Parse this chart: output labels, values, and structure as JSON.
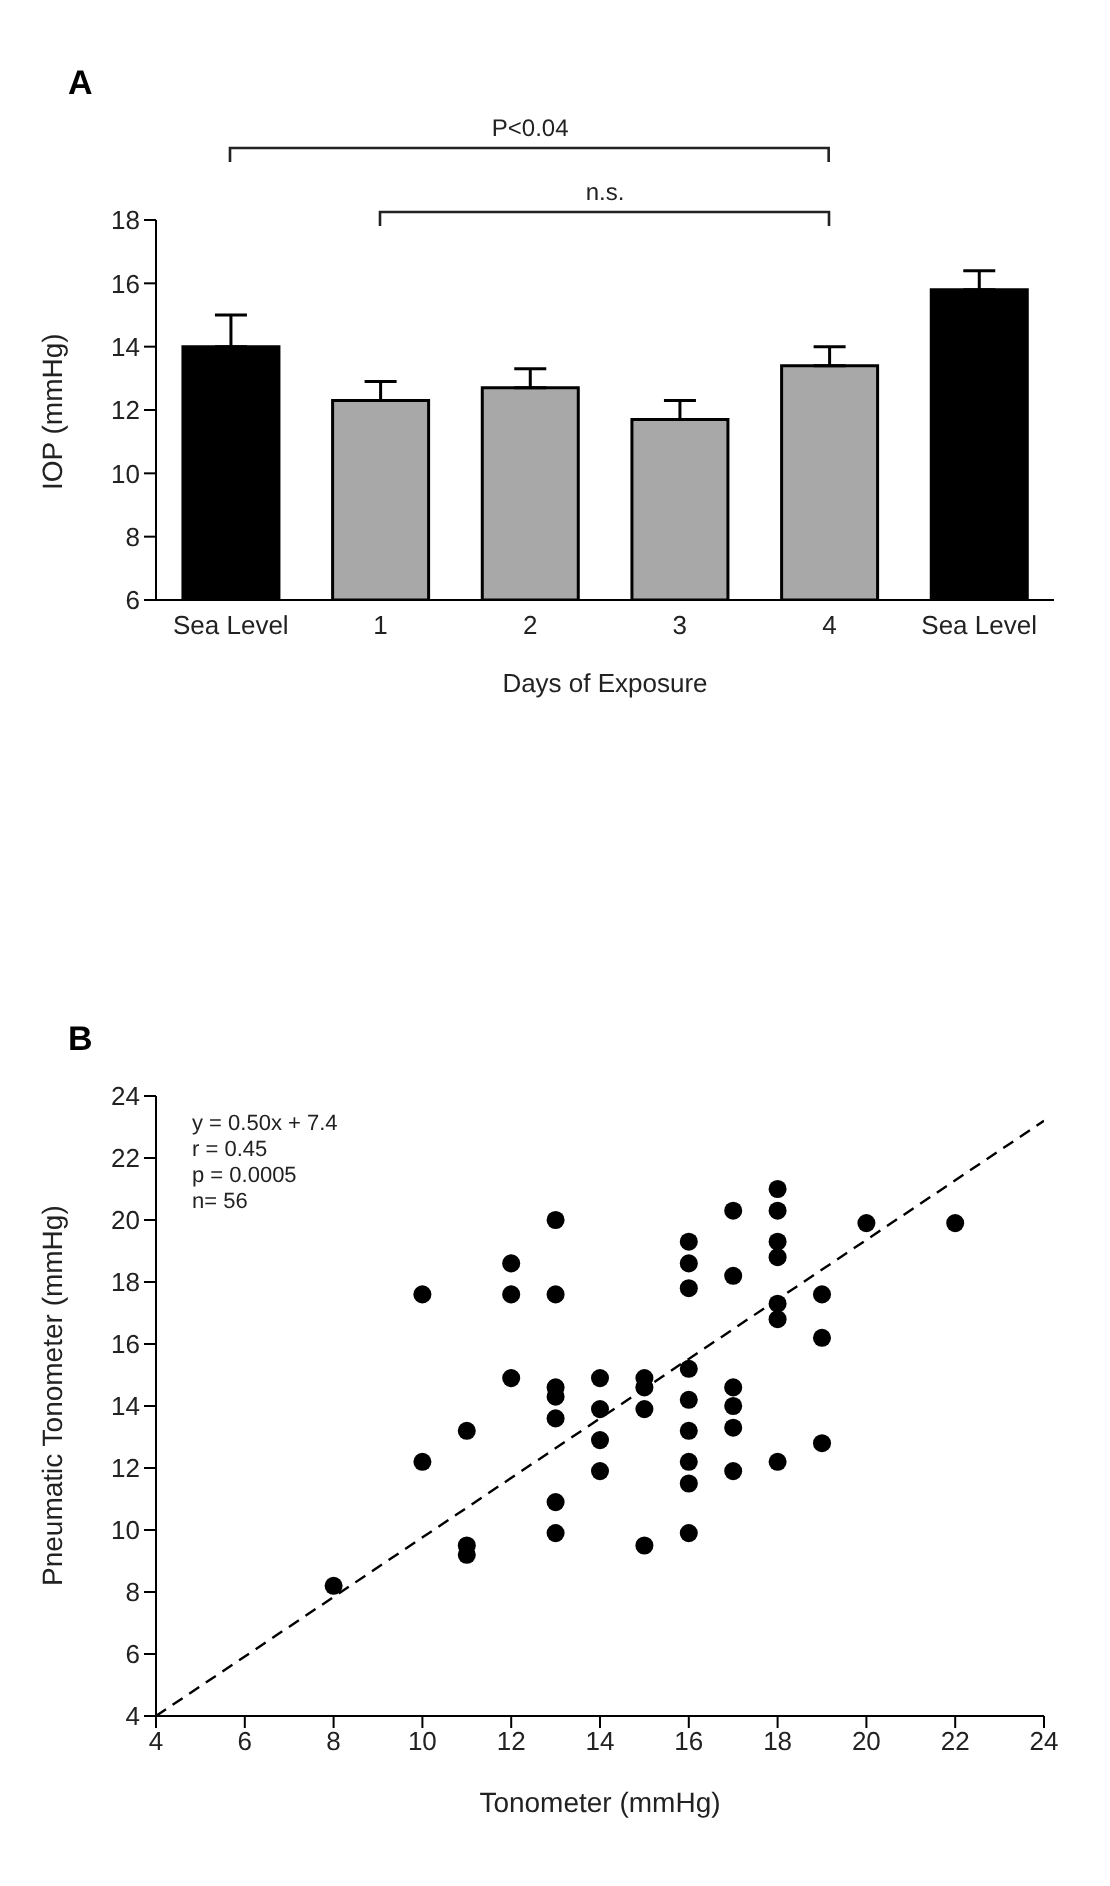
{
  "chart_data": [
    {
      "type": "bar",
      "title": "A",
      "xlabel": "Days of Exposure",
      "ylabel": "IOP (mmHg)",
      "categories": [
        "Sea Level",
        "1",
        "2",
        "3",
        "4",
        "Sea Level"
      ],
      "values": [
        14.0,
        12.3,
        12.7,
        11.7,
        13.4,
        15.8
      ],
      "colors": [
        "#000000",
        "#a8a8a8",
        "#a8a8a8",
        "#a8a8a8",
        "#a8a8a8",
        "#000000"
      ],
      "errors": [
        [
          14.0,
          15.0
        ],
        [
          12.3,
          12.9
        ],
        [
          12.7,
          13.3
        ],
        [
          11.7,
          12.3
        ],
        [
          13.4,
          14.0
        ],
        [
          15.8,
          16.4
        ]
      ],
      "ylim": [
        6,
        18
      ],
      "yticks": [
        6,
        8,
        10,
        12,
        14,
        16,
        18
      ],
      "annotations": [
        "P<0.04",
        "n.s."
      ]
    },
    {
      "type": "scatter",
      "title": "B",
      "xlabel": "Tonometer (mmHg)",
      "ylabel": "Pneumatic Tonometer (mmHg)",
      "xlim": [
        4,
        24
      ],
      "xticks": [
        4,
        6,
        8,
        10,
        12,
        14,
        16,
        18,
        20,
        22,
        24
      ],
      "ylim": [
        4,
        24
      ],
      "yticks": [
        4,
        6,
        8,
        10,
        12,
        14,
        16,
        18,
        20,
        22,
        24
      ],
      "series": [
        {
          "type": "scatter",
          "marker": "circle",
          "color": "#000000",
          "x": [
            8,
            10,
            10,
            11,
            11,
            11,
            12,
            12,
            12,
            13,
            13,
            13,
            13,
            13,
            13,
            13,
            14,
            14,
            14,
            14,
            15,
            15,
            15,
            15,
            16,
            16,
            16,
            16,
            16,
            16,
            16,
            16,
            16,
            17,
            17,
            17,
            17,
            17,
            17,
            18,
            18,
            18,
            18,
            18,
            18,
            18,
            19,
            19,
            19,
            20,
            22
          ],
          "values": [
            8.2,
            17.6,
            12.2,
            13.2,
            9.5,
            9.2,
            18.6,
            17.6,
            14.9,
            20.0,
            17.6,
            14.6,
            14.3,
            13.6,
            10.9,
            9.9,
            14.9,
            13.9,
            12.9,
            11.9,
            14.9,
            14.6,
            13.9,
            9.5,
            19.3,
            18.6,
            17.8,
            15.2,
            14.2,
            13.2,
            12.2,
            11.5,
            9.9,
            20.3,
            18.2,
            14.6,
            14.0,
            13.3,
            11.9,
            21.0,
            20.3,
            19.3,
            18.8,
            17.3,
            16.8,
            12.2,
            17.6,
            16.2,
            12.8,
            19.9,
            19.9
          ]
        },
        {
          "type": "line",
          "marker": "none",
          "color": "#000000",
          "line_style": "dashed",
          "x": [
            4,
            24
          ],
          "values": [
            4,
            23.2
          ]
        }
      ],
      "annotations": [
        "y = 0.50x + 7.4",
        "r = 0.45",
        "p = 0.0005",
        "n= 56"
      ]
    }
  ]
}
